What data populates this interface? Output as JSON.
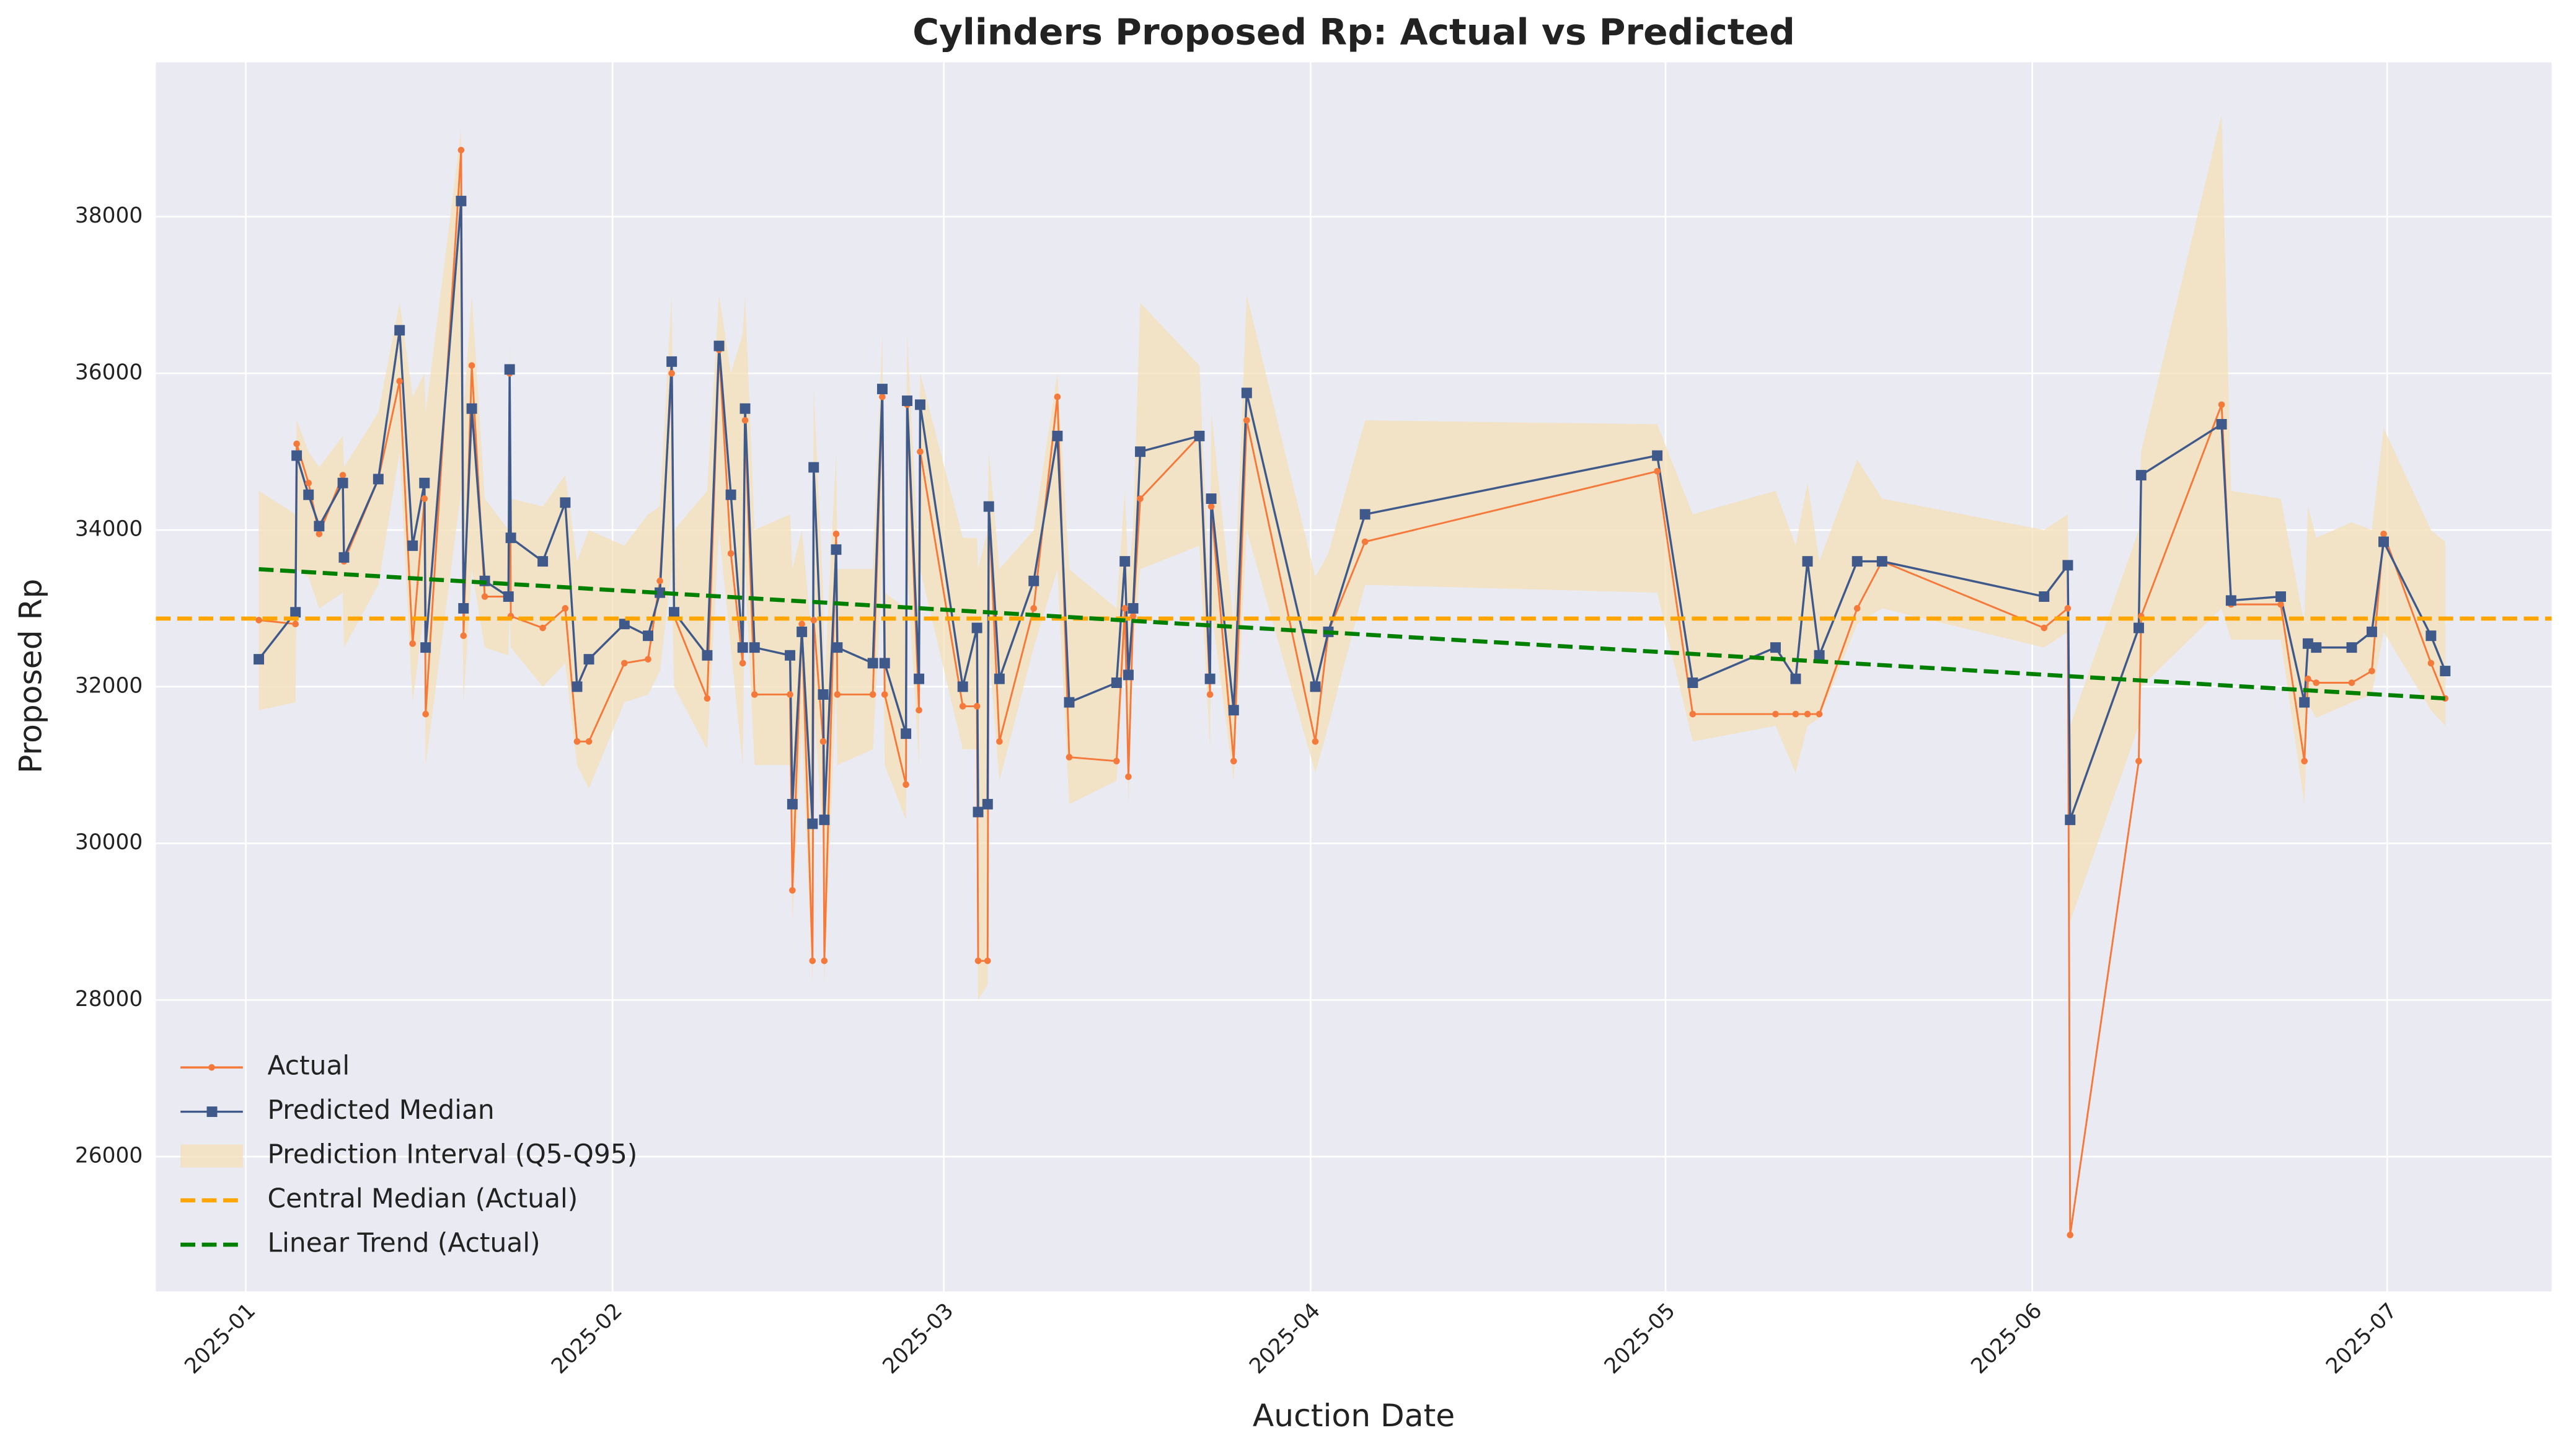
{
  "chart_data": {
    "type": "line",
    "title": "Cylinders Proposed Rp: Actual vs Predicted",
    "xlabel": "Auction Date",
    "ylabel": "Proposed Rp",
    "x": [
      1.1,
      4.2,
      4.3,
      5.3,
      6.2,
      8.2,
      8.3,
      11.2,
      13,
      14.1,
      15.1,
      15.2,
      18.2,
      18.4,
      19.1,
      20.2,
      22.2,
      22.3,
      22.4,
      25.1,
      27,
      28,
      29,
      32,
      34,
      35,
      36,
      36.2,
      39,
      40,
      41,
      42,
      42.2,
      43,
      46,
      46.2,
      47,
      47.9,
      48,
      48.8,
      48.9,
      49.9,
      50,
      53,
      53.8,
      54,
      55.8,
      55.9,
      56.9,
      57,
      60.6,
      61.8,
      61.9,
      62.7,
      62.8,
      63.7,
      66.6,
      68.6,
      69.6,
      73.6,
      74.3,
      74.6,
      75,
      75.6,
      80.6,
      81.5,
      81.6,
      83.5,
      84.6,
      90.4,
      91.5,
      94.6,
      119.3,
      122.3,
      129.3,
      131,
      132,
      133,
      136.2,
      138.3,
      152,
      154,
      154.2,
      160,
      160.2,
      167,
      167.8,
      172,
      174,
      174.3,
      175,
      178,
      179.7,
      180.7,
      184.7,
      185.9
    ],
    "series": [
      {
        "name": "Actual",
        "color": "#f5793a",
        "values": [
          32850,
          32800,
          35100,
          34600,
          33950,
          34700,
          33600,
          34650,
          35900,
          32550,
          34400,
          31650,
          38850,
          32650,
          36100,
          33150,
          33150,
          36000,
          32900,
          32750,
          33000,
          31300,
          31300,
          32300,
          32350,
          33350,
          36000,
          32900,
          31850,
          36300,
          33700,
          32300,
          35400,
          31900,
          31900,
          29400,
          32800,
          28500,
          32850,
          31300,
          28500,
          33950,
          31900,
          31900,
          35700,
          31900,
          30750,
          35600,
          31700,
          35000,
          31750,
          31750,
          28500,
          28500,
          34300,
          31300,
          33000,
          35700,
          31100,
          31050,
          33000,
          30850,
          32900,
          34400,
          35200,
          31900,
          34300,
          31050,
          35400,
          31300,
          32700,
          33850,
          34750,
          31650,
          31650,
          31650,
          31650,
          31650,
          33000,
          33600,
          32750,
          33000,
          25000,
          31050,
          32900,
          35600,
          33050,
          33050,
          31050,
          32100,
          32050,
          32050,
          32200,
          33950,
          32300,
          31850
        ]
      },
      {
        "name": "Predicted Median",
        "color": "#3f5a8a",
        "values": [
          32350,
          32950,
          34950,
          34450,
          34050,
          34600,
          33650,
          34650,
          36550,
          33800,
          34600,
          32500,
          38200,
          33000,
          35550,
          33350,
          33150,
          36050,
          33900,
          33600,
          34350,
          32000,
          32350,
          32800,
          32650,
          33200,
          36150,
          32950,
          32400,
          36350,
          34450,
          32500,
          35550,
          32500,
          32400,
          30500,
          32700,
          30250,
          34800,
          31900,
          30300,
          33750,
          32500,
          32300,
          35800,
          32300,
          31400,
          35650,
          32100,
          35600,
          32000,
          32750,
          30400,
          30500,
          34300,
          32100,
          33350,
          35200,
          31800,
          32050,
          33600,
          32150,
          33000,
          35000,
          35200,
          32100,
          34400,
          31700,
          35750,
          32000,
          32700,
          34200,
          34950,
          32050,
          32500,
          32100,
          33600,
          32400,
          33600,
          33600,
          33150,
          33550,
          30300,
          32750,
          34700,
          35350,
          33100,
          33150,
          31800,
          32550,
          32500,
          32500,
          32700,
          33850,
          32650,
          32200
        ]
      },
      {
        "name": "Prediction Interval (Q5-Q95)",
        "color": "#f5deb3",
        "lower": [
          31700,
          31800,
          33500,
          33400,
          33000,
          33200,
          32500,
          33300,
          35000,
          31800,
          33000,
          31000,
          34500,
          31800,
          33500,
          32500,
          32400,
          33000,
          32500,
          32000,
          32300,
          31000,
          30700,
          31800,
          31900,
          32200,
          33500,
          32000,
          31200,
          34000,
          32500,
          31000,
          33500,
          31000,
          31000,
          29000,
          31500,
          28200,
          31800,
          30000,
          28200,
          32000,
          31000,
          31200,
          33500,
          31000,
          30300,
          33500,
          31000,
          33500,
          31200,
          31200,
          28000,
          28200,
          32500,
          30800,
          32500,
          33500,
          30500,
          30800,
          32500,
          30500,
          32500,
          33500,
          33800,
          31200,
          33000,
          30800,
          34000,
          30900,
          31500,
          33300,
          33200,
          31300,
          31500,
          30900,
          31500,
          31600,
          32800,
          33000,
          32500,
          32700,
          29000,
          31500,
          32000,
          33000,
          32600,
          32600,
          30500,
          31800,
          31600,
          31800,
          31900,
          32700,
          31700,
          31500
        ],
        "upper": [
          34500,
          34200,
          35400,
          35000,
          34800,
          35200,
          34800,
          35500,
          36900,
          35700,
          36000,
          35500,
          39100,
          35500,
          37000,
          34400,
          34000,
          36500,
          34400,
          34300,
          34700,
          33600,
          34000,
          33800,
          34200,
          34300,
          37000,
          34000,
          34500,
          37000,
          36000,
          36500,
          37000,
          34000,
          34200,
          33500,
          34000,
          32500,
          35800,
          33200,
          32000,
          35000,
          33500,
          33500,
          36500,
          33200,
          33000,
          36500,
          33500,
          36000,
          33900,
          33900,
          33500,
          34000,
          35000,
          33500,
          34000,
          36000,
          33500,
          33000,
          34500,
          33400,
          34000,
          36900,
          36100,
          33000,
          35500,
          32800,
          37000,
          33400,
          33700,
          35400,
          35350,
          34200,
          34500,
          33800,
          34600,
          33600,
          34900,
          34400,
          34000,
          34200,
          31500,
          34000,
          35000,
          39300,
          34500,
          34400,
          32800,
          34300,
          33900,
          34100,
          34000,
          35300,
          34000,
          33850
        ]
      },
      {
        "name": "Central Median (Actual)",
        "color": "#ffa500",
        "value": 32870
      },
      {
        "name": "Linear Trend (Actual)",
        "color": "#008000",
        "x": [
          1.1,
          185.9
        ],
        "values": [
          33500,
          31850
        ]
      }
    ],
    "xlim": [
      -7.6,
      194.9
    ],
    "ylim": [
      24280,
      39970
    ],
    "xticks": [
      {
        "value": 0,
        "label": "2025-01"
      },
      {
        "value": 31,
        "label": "2025-02"
      },
      {
        "value": 59,
        "label": "2025-03"
      },
      {
        "value": 90,
        "label": "2025-04"
      },
      {
        "value": 120,
        "label": "2025-05"
      },
      {
        "value": 151,
        "label": "2025-06"
      },
      {
        "value": 181,
        "label": "2025-07"
      }
    ],
    "yticks": [
      26000,
      28000,
      30000,
      32000,
      34000,
      36000,
      38000
    ],
    "grid": true,
    "legend": "lower left"
  }
}
